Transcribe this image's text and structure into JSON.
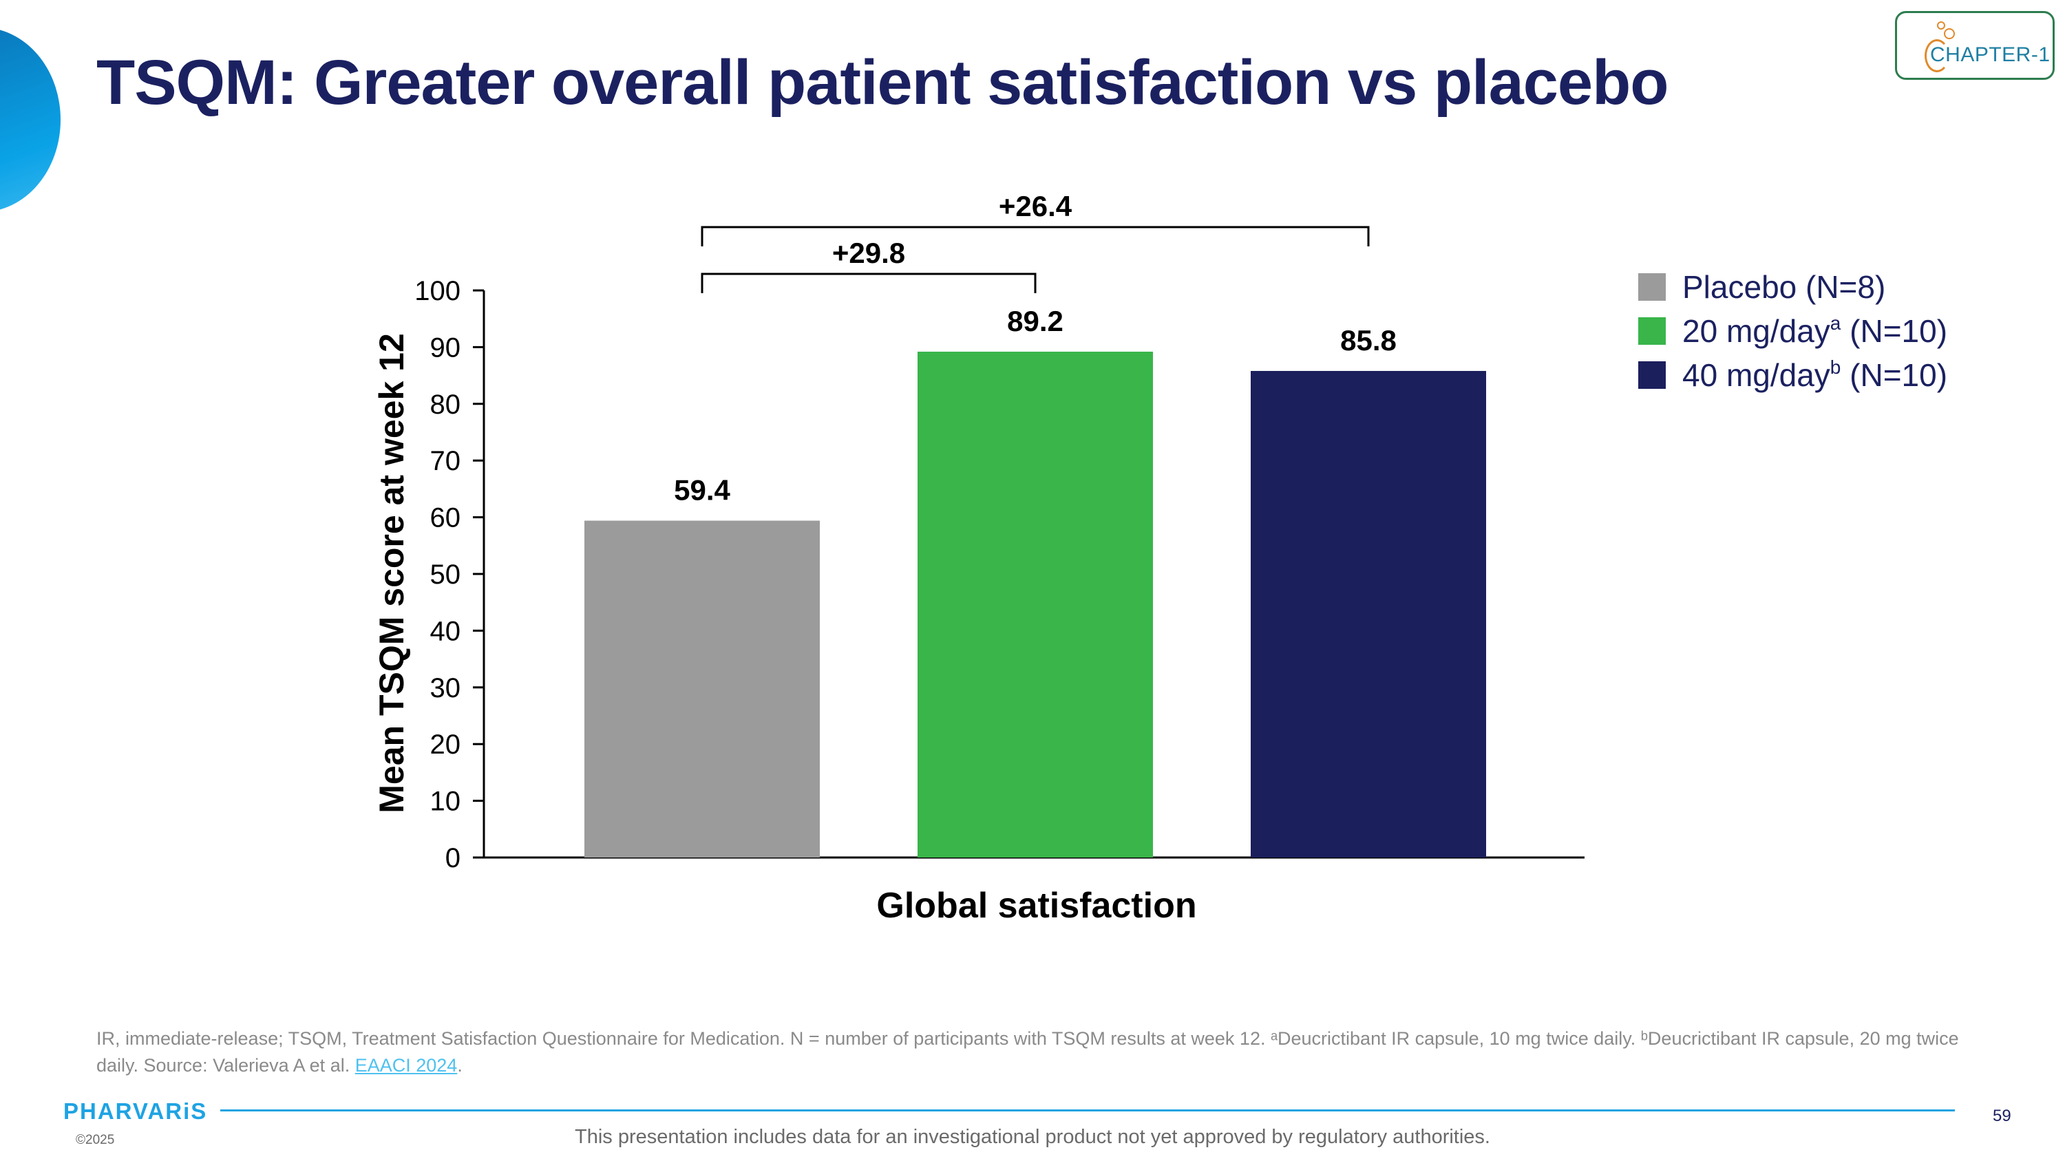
{
  "slide": {
    "title": "TSQM: Greater overall patient satisfaction vs placebo",
    "logo_text": "CHAPTER-1",
    "brand": "PHARVARiS",
    "copyright": "©2025",
    "page_number": "59",
    "disclaimer": "This presentation includes data for an investigational product not yet approved by regulatory authorities.",
    "footnote": {
      "text_before_link": "IR, immediate-release; TSQM, Treatment Satisfaction Questionnaire for Medication. N = number of participants with TSQM results at week 12. ᵃDeucrictibant IR capsule, 10 mg twice daily. ᵇDeucrictibant IR capsule, 20 mg twice daily. Source: Valerieva A et al. ",
      "link": "EAACI 2024",
      "text_after_link": "."
    }
  },
  "legend": {
    "items": [
      {
        "label": "Placebo (N=8)",
        "sup": "",
        "label_after": "",
        "color": "#9b9b9b"
      },
      {
        "label": "20 mg/day",
        "sup": "a",
        "label_after": " (N=10)",
        "color": "#39b54a"
      },
      {
        "label": "40 mg/day",
        "sup": "b",
        "label_after": " (N=10)",
        "color": "#1b1f5c"
      }
    ]
  },
  "chart_data": {
    "type": "bar",
    "categories": [
      "Global satisfaction"
    ],
    "series": [
      {
        "values": [
          59.4
        ],
        "color": "#9b9b9b"
      },
      {
        "values": [
          89.2
        ],
        "color": "#39b54a"
      },
      {
        "values": [
          85.8
        ],
        "color": "#1b1f5c"
      }
    ],
    "data_labels": [
      "59.4",
      "89.2",
      "85.8"
    ],
    "xlabel": "Global satisfaction",
    "ylabel": "Mean TSQM score at week 12",
    "ylim": [
      0,
      100
    ],
    "yticks": [
      0,
      10,
      20,
      30,
      40,
      50,
      60,
      70,
      80,
      90,
      100
    ],
    "grid": false,
    "legend_position": "top-right",
    "annotations": [
      {
        "text": "+29.8",
        "from_series": 0,
        "to_series": 1
      },
      {
        "text": "+26.4",
        "from_series": 0,
        "to_series": 2
      }
    ]
  }
}
